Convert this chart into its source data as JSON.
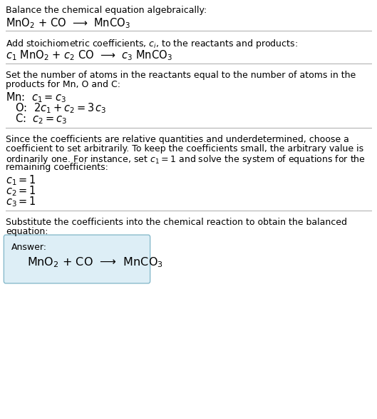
{
  "bg_color": "#ffffff",
  "text_color": "#000000",
  "separator_color": "#aaaaaa",
  "answer_box_color": "#ddeef6",
  "answer_box_border": "#88bbcc",
  "section1_title": "Balance the chemical equation algebraically:",
  "section1_eq": "MnO$_2$ + CO  ⟶  MnCO$_3$",
  "section2_title": "Add stoichiometric coefficients, $c_i$, to the reactants and products:",
  "section2_eq": "$c_1$ MnO$_2$ + $c_2$ CO  ⟶  $c_3$ MnCO$_3$",
  "section3_title_l1": "Set the number of atoms in the reactants equal to the number of atoms in the",
  "section3_title_l2": "products for Mn, O and C:",
  "section3_mn": "Mn:  $c_1 = c_3$",
  "section3_o": "  O:  $2c_1 + c_2 = 3\\,c_3$",
  "section3_c": "  C:  $c_2 = c_3$",
  "section4_title_l1": "Since the coefficients are relative quantities and underdetermined, choose a",
  "section4_title_l2": "coefficient to set arbitrarily. To keep the coefficients small, the arbitrary value is",
  "section4_title_l3": "ordinarily one. For instance, set $c_1 = 1$ and solve the system of equations for the",
  "section4_title_l4": "remaining coefficients:",
  "section4_c1": "$c_1 = 1$",
  "section4_c2": "$c_2 = 1$",
  "section4_c3": "$c_3 = 1$",
  "section5_title_l1": "Substitute the coefficients into the chemical reaction to obtain the balanced",
  "section5_title_l2": "equation:",
  "answer_label": "Answer:",
  "answer_eq": "MnO$_2$ + CO  ⟶  MnCO$_3$",
  "fs_body": 9.0,
  "fs_eq": 10.5,
  "fs_answer": 11.5
}
